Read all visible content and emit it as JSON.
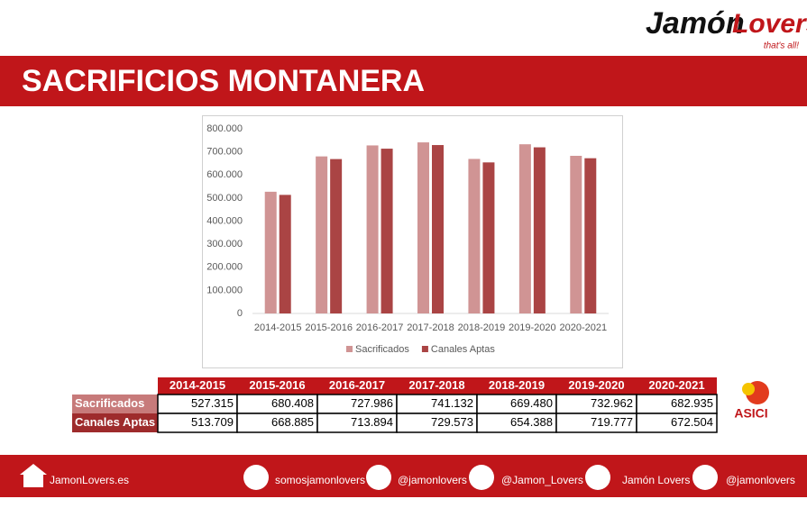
{
  "header": {
    "logo": "Jamón",
    "logo_accent": "Lovers",
    "tagline": "that's all!"
  },
  "title": "SACRIFICIOS MONTANERA",
  "chart_data": {
    "type": "bar",
    "categories": [
      "2014-2015",
      "2015-2016",
      "2016-2017",
      "2017-2018",
      "2018-2019",
      "2019-2020",
      "2020-2021"
    ],
    "series": [
      {
        "name": "Sacrificados",
        "color": "#d09494",
        "values": [
          527315,
          680408,
          727986,
          741132,
          669480,
          732962,
          682935
        ],
        "value_labels": [
          "527.315",
          "680.408",
          "727.986",
          "741.132",
          "669.480",
          "732.962",
          "682.935"
        ]
      },
      {
        "name": "Canales Aptas",
        "color": "#aa4444",
        "values": [
          513709,
          668885,
          713894,
          729573,
          654388,
          719777,
          672504
        ],
        "value_labels": [
          "513.709",
          "668.885",
          "713.894",
          "729.573",
          "654.388",
          "719.777",
          "672.504"
        ]
      }
    ],
    "ylim": [
      0,
      800000
    ],
    "yticks": [
      0,
      {
        "value": 100000,
        "label": "100.000"
      },
      {
        "value": 200000,
        "label": "200.000"
      },
      {
        "value": 300000,
        "label": "300.000"
      },
      {
        "value": 400000,
        "label": "400.000"
      },
      {
        "value": 500000,
        "label": "500.000"
      },
      {
        "value": 600000,
        "label": "600.000"
      },
      {
        "value": 700000,
        "label": "700.000"
      },
      {
        "value": 800000,
        "label": "800.000"
      }
    ],
    "grid": false,
    "legend": "bottom"
  },
  "sponsor": "ASICI",
  "footer": {
    "links": [
      "JamonLovers.es",
      "somosjamonlovers",
      "@jamonlovers",
      "@Jamon_Lovers",
      "Jamón Lovers",
      "@jamonlovers"
    ]
  }
}
